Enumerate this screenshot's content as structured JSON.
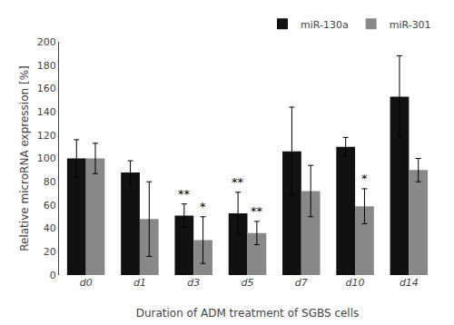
{
  "chart_data": {
    "type": "bar",
    "categories": [
      "d0",
      "d1",
      "d3",
      "d5",
      "d7",
      "d10",
      "d14"
    ],
    "series": [
      {
        "name": "miR-130a",
        "color": "#111111",
        "values": [
          100,
          88,
          51,
          53,
          106,
          110,
          153
        ],
        "errors": [
          16,
          10,
          10,
          18,
          38,
          8,
          35
        ]
      },
      {
        "name": "miR-301",
        "color": "#888888",
        "values": [
          100,
          48,
          30,
          36,
          72,
          59,
          90
        ],
        "errors": [
          13,
          32,
          20,
          10,
          22,
          15,
          10
        ]
      }
    ],
    "ylabel": "Relative microRNA expression [%]",
    "xlabel": "Duration of ADM treatment of SGBS cells",
    "ylim": [
      0,
      200
    ],
    "yticks": [
      0,
      20,
      40,
      60,
      80,
      100,
      120,
      140,
      160,
      180,
      200
    ],
    "annotations": [
      {
        "category": "d3",
        "series": "miR-130a",
        "text": "**"
      },
      {
        "category": "d3",
        "series": "miR-301",
        "text": "*"
      },
      {
        "category": "d5",
        "series": "miR-130a",
        "text": "**"
      },
      {
        "category": "d5",
        "series": "miR-301",
        "text": "**"
      },
      {
        "category": "d10",
        "series": "miR-301",
        "text": "*"
      }
    ],
    "legend": "upper right",
    "grid": false
  }
}
